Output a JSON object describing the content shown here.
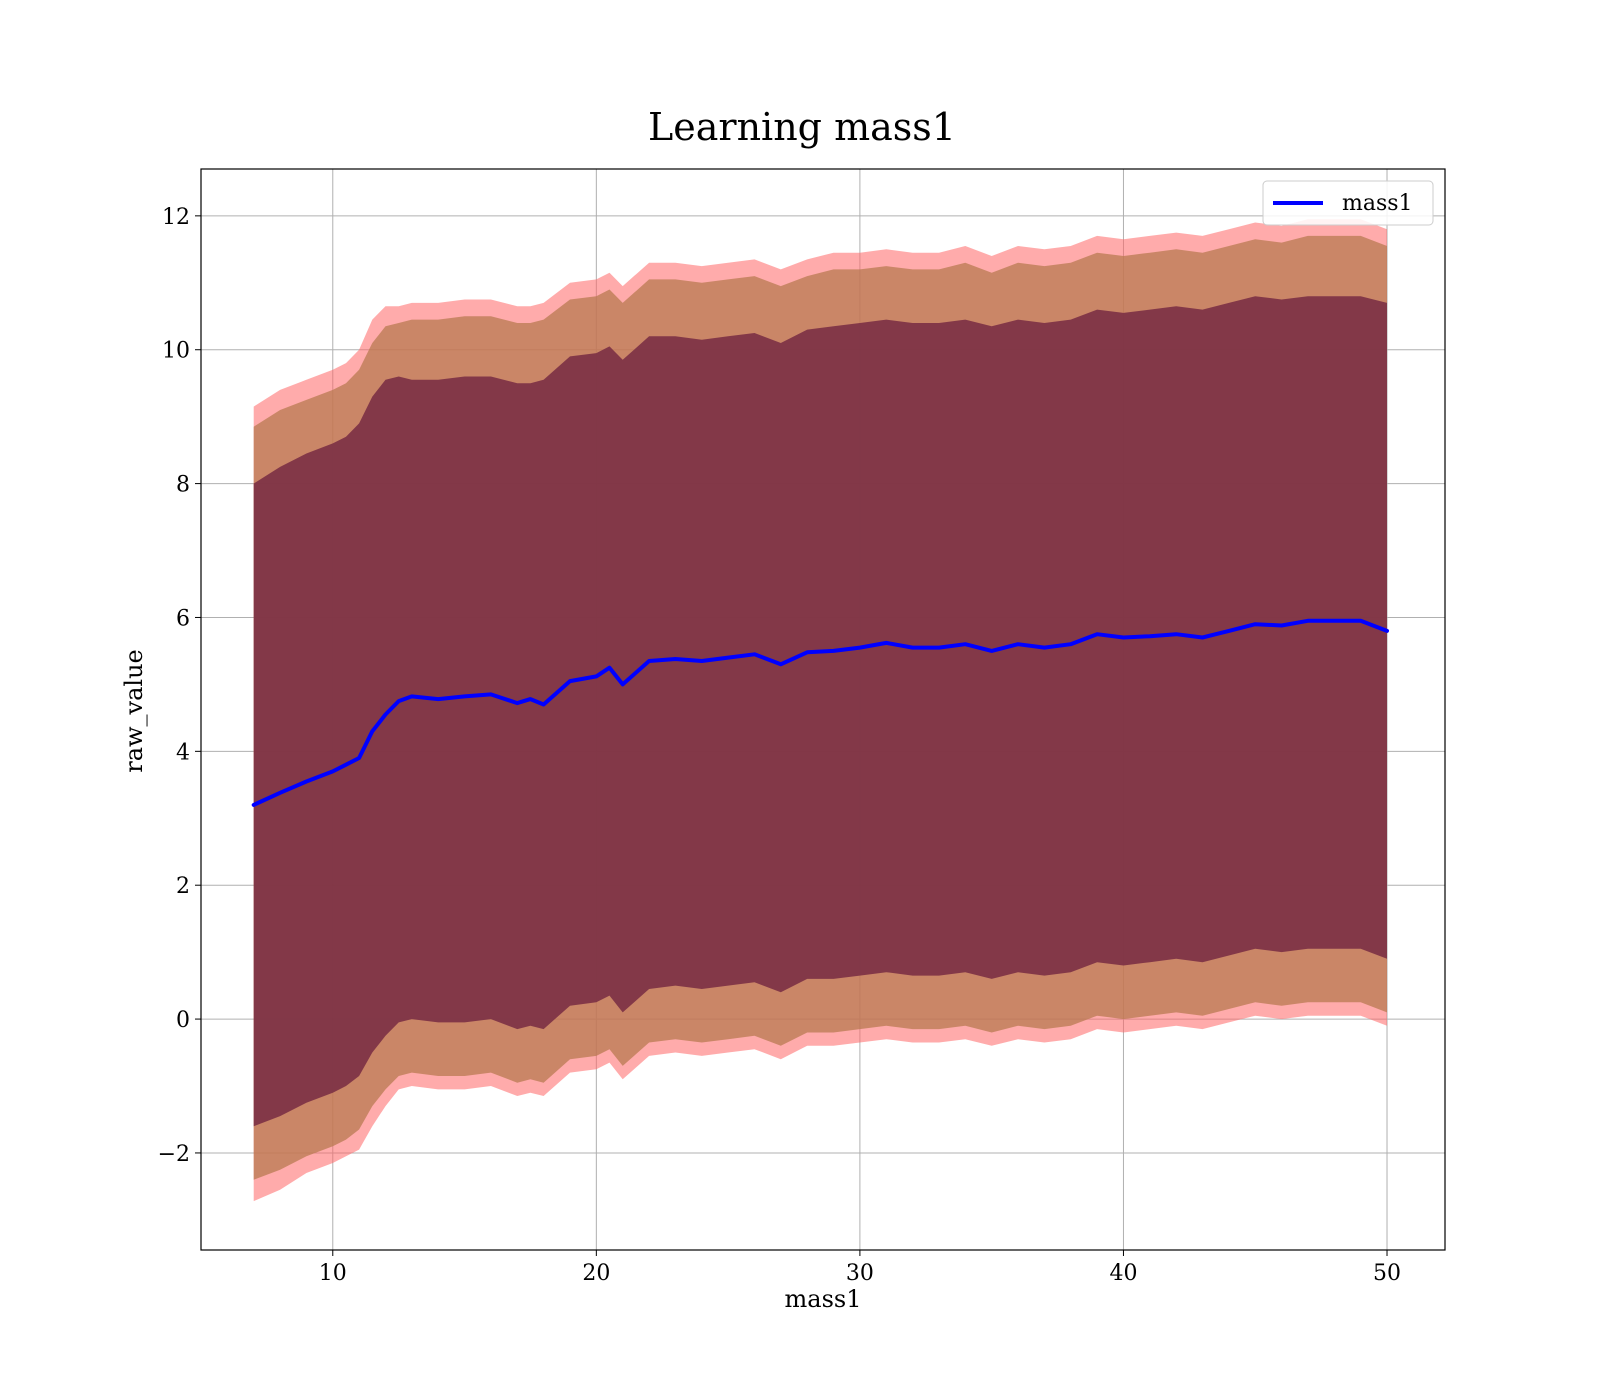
{
  "chart_data": {
    "type": "area",
    "title": "Learning mass1",
    "xlabel": "mass1",
    "ylabel": "raw_value",
    "xlim": [
      5.0,
      52.2
    ],
    "ylim": [
      -3.45,
      12.7
    ],
    "xticks": [
      10,
      20,
      30,
      40,
      50
    ],
    "yticks": [
      -2,
      0,
      2,
      4,
      6,
      8,
      10,
      12
    ],
    "xtick_labels": [
      "10",
      "20",
      "30",
      "40",
      "50"
    ],
    "ytick_labels": [
      "−2",
      "0",
      "2",
      "4",
      "6",
      "8",
      "10",
      "12"
    ],
    "grid": true,
    "legend": {
      "position": "top-right",
      "entries": [
        "mass1"
      ]
    },
    "colors": {
      "line": "#0000ff",
      "band_outer": "#ff6666",
      "band_middle": "#b87a50",
      "band_inner": "#7b3045",
      "grid": "#b0b0b0"
    },
    "x": [
      7,
      8,
      9,
      10,
      10.5,
      11,
      11.5,
      12,
      12.5,
      13,
      14,
      15,
      16,
      17,
      17.5,
      18,
      19,
      20,
      20.5,
      21,
      22,
      23,
      24,
      25,
      26,
      27,
      28,
      29,
      30,
      31,
      32,
      33,
      34,
      35,
      36,
      37,
      38,
      39,
      40,
      41,
      42,
      43,
      44,
      45,
      46,
      47,
      48,
      49,
      50
    ],
    "series": [
      {
        "name": "mass1",
        "values": [
          3.2,
          3.38,
          3.55,
          3.7,
          3.8,
          3.9,
          4.3,
          4.55,
          4.75,
          4.82,
          4.78,
          4.82,
          4.85,
          4.72,
          4.78,
          4.7,
          5.05,
          5.12,
          5.25,
          5.0,
          5.35,
          5.38,
          5.35,
          5.4,
          5.45,
          5.3,
          5.48,
          5.5,
          5.55,
          5.62,
          5.55,
          5.55,
          5.6,
          5.5,
          5.6,
          5.55,
          5.6,
          5.75,
          5.7,
          5.72,
          5.75,
          5.7,
          5.8,
          5.9,
          5.88,
          5.95,
          5.95,
          5.95,
          5.8
        ]
      }
    ],
    "bands": [
      {
        "level": "outer",
        "upper": [
          9.15,
          9.4,
          9.55,
          9.7,
          9.8,
          10.0,
          10.45,
          10.65,
          10.65,
          10.7,
          10.7,
          10.75,
          10.75,
          10.65,
          10.65,
          10.7,
          11.0,
          11.05,
          11.15,
          10.95,
          11.3,
          11.3,
          11.25,
          11.3,
          11.35,
          11.2,
          11.35,
          11.45,
          11.45,
          11.5,
          11.45,
          11.45,
          11.55,
          11.4,
          11.55,
          11.5,
          11.55,
          11.7,
          11.65,
          11.7,
          11.75,
          11.7,
          11.8,
          11.9,
          11.85,
          11.95,
          11.95,
          11.95,
          11.8
        ],
        "lower": [
          -2.72,
          -2.55,
          -2.3,
          -2.15,
          -2.05,
          -1.95,
          -1.6,
          -1.3,
          -1.05,
          -1.0,
          -1.05,
          -1.05,
          -1.0,
          -1.15,
          -1.1,
          -1.15,
          -0.8,
          -0.75,
          -0.65,
          -0.9,
          -0.55,
          -0.5,
          -0.55,
          -0.5,
          -0.45,
          -0.6,
          -0.4,
          -0.4,
          -0.35,
          -0.3,
          -0.35,
          -0.35,
          -0.3,
          -0.4,
          -0.3,
          -0.35,
          -0.3,
          -0.15,
          -0.2,
          -0.15,
          -0.1,
          -0.15,
          -0.05,
          0.05,
          0.0,
          0.05,
          0.05,
          0.05,
          -0.1
        ]
      },
      {
        "level": "middle",
        "upper": [
          8.85,
          9.1,
          9.25,
          9.4,
          9.5,
          9.7,
          10.1,
          10.35,
          10.4,
          10.45,
          10.45,
          10.5,
          10.5,
          10.4,
          10.4,
          10.45,
          10.75,
          10.8,
          10.9,
          10.7,
          11.05,
          11.05,
          11.0,
          11.05,
          11.1,
          10.95,
          11.1,
          11.2,
          11.2,
          11.25,
          11.2,
          11.2,
          11.3,
          11.15,
          11.3,
          11.25,
          11.3,
          11.45,
          11.4,
          11.45,
          11.5,
          11.45,
          11.55,
          11.65,
          11.6,
          11.7,
          11.7,
          11.7,
          11.55
        ],
        "lower": [
          -2.4,
          -2.25,
          -2.05,
          -1.9,
          -1.8,
          -1.65,
          -1.3,
          -1.05,
          -0.85,
          -0.8,
          -0.85,
          -0.85,
          -0.8,
          -0.95,
          -0.9,
          -0.95,
          -0.6,
          -0.55,
          -0.45,
          -0.7,
          -0.35,
          -0.3,
          -0.35,
          -0.3,
          -0.25,
          -0.4,
          -0.2,
          -0.2,
          -0.15,
          -0.1,
          -0.15,
          -0.15,
          -0.1,
          -0.2,
          -0.1,
          -0.15,
          -0.1,
          0.05,
          0.0,
          0.05,
          0.1,
          0.05,
          0.15,
          0.25,
          0.2,
          0.25,
          0.25,
          0.25,
          0.1
        ]
      },
      {
        "level": "inner",
        "upper": [
          8.0,
          8.25,
          8.45,
          8.6,
          8.7,
          8.9,
          9.3,
          9.55,
          9.6,
          9.55,
          9.55,
          9.6,
          9.6,
          9.5,
          9.5,
          9.55,
          9.9,
          9.95,
          10.05,
          9.85,
          10.2,
          10.2,
          10.15,
          10.2,
          10.25,
          10.1,
          10.3,
          10.35,
          10.4,
          10.45,
          10.4,
          10.4,
          10.45,
          10.35,
          10.45,
          10.4,
          10.45,
          10.6,
          10.55,
          10.6,
          10.65,
          10.6,
          10.7,
          10.8,
          10.75,
          10.8,
          10.8,
          10.8,
          10.7
        ],
        "lower": [
          -1.6,
          -1.45,
          -1.25,
          -1.1,
          -1.0,
          -0.85,
          -0.5,
          -0.25,
          -0.05,
          0.0,
          -0.05,
          -0.05,
          0.0,
          -0.15,
          -0.1,
          -0.15,
          0.2,
          0.25,
          0.35,
          0.1,
          0.45,
          0.5,
          0.45,
          0.5,
          0.55,
          0.4,
          0.6,
          0.6,
          0.65,
          0.7,
          0.65,
          0.65,
          0.7,
          0.6,
          0.7,
          0.65,
          0.7,
          0.85,
          0.8,
          0.85,
          0.9,
          0.85,
          0.95,
          1.05,
          1.0,
          1.05,
          1.05,
          1.05,
          0.9
        ]
      }
    ]
  }
}
